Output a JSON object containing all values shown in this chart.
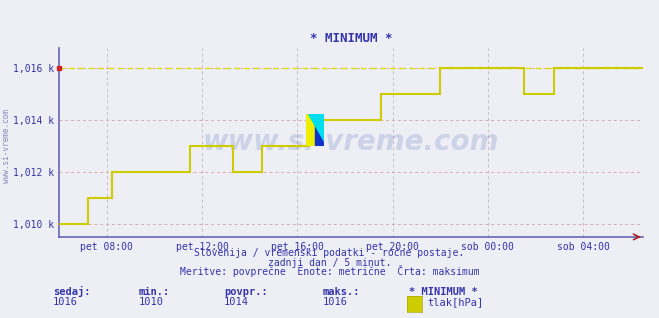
{
  "title": "* MINIMUM *",
  "bg_color": "#eeeef5",
  "plot_bg_color": "#eeeef5",
  "line_color": "#cccc00",
  "dashed_line_color": "#dddd00",
  "grid_color_v": "#ccbbbb",
  "grid_color_h": "#ddaaaa",
  "axis_color": "#6666bb",
  "text_color": "#3333aa",
  "title_color": "#3333aa",
  "ylabel_left": "www.si-vreme.com",
  "ytick_labels": [
    "1,010 k",
    "1,012 k",
    "1,014 k",
    "1,016 k"
  ],
  "yticks": [
    1010,
    1012,
    1014,
    1016
  ],
  "xtick_labels": [
    "pet 08:00",
    "pet 12:00",
    "pet 16:00",
    "pet 20:00",
    "sob 00:00",
    "sob 04:00"
  ],
  "xtick_hours": [
    8,
    12,
    16,
    20,
    24,
    28
  ],
  "footer_line1": "Slovenija / vremenski podatki - ročne postaje.",
  "footer_line2": "zadnji dan / 5 minut.",
  "footer_line3": "Meritve: povprečne  Enote: metrične  Črta: maksimum",
  "legend_sedaj_label": "sedaj:",
  "legend_sedaj_val": "1016",
  "legend_min_label": "min.:",
  "legend_min_val": "1010",
  "legend_povpr_label": "povpr.:",
  "legend_povpr_val": "1014",
  "legend_maks_label": "maks.:",
  "legend_maks_val": "1016",
  "legend_name": "* MINIMUM *",
  "legend_unit": "tlak[hPa]",
  "watermark": "www.si-vreme.com",
  "ylim": [
    1009.5,
    1016.8
  ],
  "xlim_start": 6.0,
  "xlim_end": 30.5,
  "step_points": [
    [
      6.0,
      1010.0
    ],
    [
      7.2,
      1010.0
    ],
    [
      7.2,
      1011.0
    ],
    [
      8.2,
      1011.0
    ],
    [
      8.2,
      1012.0
    ],
    [
      11.5,
      1012.0
    ],
    [
      11.5,
      1013.0
    ],
    [
      13.3,
      1013.0
    ],
    [
      13.3,
      1012.0
    ],
    [
      14.5,
      1012.0
    ],
    [
      14.5,
      1013.0
    ],
    [
      16.5,
      1013.0
    ],
    [
      16.5,
      1014.0
    ],
    [
      19.5,
      1014.0
    ],
    [
      19.5,
      1015.0
    ],
    [
      22.0,
      1015.0
    ],
    [
      22.0,
      1016.0
    ],
    [
      25.5,
      1016.0
    ],
    [
      25.5,
      1015.0
    ],
    [
      26.8,
      1015.0
    ],
    [
      26.8,
      1016.0
    ],
    [
      30.5,
      1016.0
    ]
  ],
  "dashed_y": 1016.0,
  "red_dot_x": 6.0,
  "red_dot_y": 1016.0
}
